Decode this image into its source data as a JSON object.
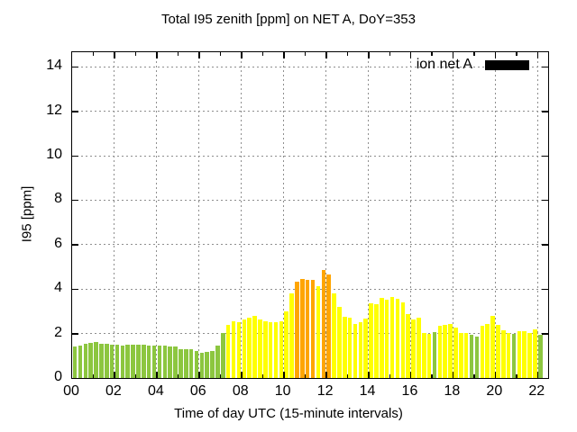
{
  "chart_data": {
    "type": "bar",
    "title": "Total I95 zenith [ppm] on NET A, DoY=353",
    "xlabel": "Time of day UTC (15-minute intervals)",
    "ylabel": "I95 [ppm]",
    "legend": {
      "label": "ion net A",
      "swatch_color": "#000000",
      "position": "top-right-inside"
    },
    "grid": "dashed",
    "background": "#ffffff",
    "interval_minutes": 15,
    "start_time": "00:00",
    "end_time": "22:00",
    "xlim_hours": [
      0,
      22.5
    ],
    "ylim": [
      0,
      14.66
    ],
    "yticks": [
      0,
      2,
      4,
      6,
      8,
      10,
      12,
      14
    ],
    "ytick_labels": [
      "0",
      "2",
      "4",
      "6",
      "8",
      "10",
      "12",
      "14"
    ],
    "xtick_hours": [
      0,
      2,
      4,
      6,
      8,
      10,
      12,
      14,
      16,
      18,
      20,
      22
    ],
    "xtick_labels": [
      "00",
      "02",
      "04",
      "06",
      "08",
      "10",
      "12",
      "14",
      "16",
      "18",
      "20",
      "22"
    ],
    "minor_xtick_every_hours": 1,
    "colors": {
      "G": "#8cc63f",
      "Y": "#ffff00",
      "O": "#ffa500"
    },
    "bar_colors": "GGGGGGGGGGGGGGGGGGGGGGGGGGGGGYYYYYYYYYYYYYOOOOYOOYYYYYYYYYYYYYYYYYYYGYYYYYYGGYYYYYYGYYYYG",
    "values": [
      1.41,
      1.44,
      1.54,
      1.59,
      1.63,
      1.54,
      1.52,
      1.51,
      1.51,
      1.46,
      1.51,
      1.5,
      1.5,
      1.48,
      1.47,
      1.47,
      1.46,
      1.44,
      1.41,
      1.43,
      1.31,
      1.28,
      1.28,
      1.21,
      1.13,
      1.17,
      1.22,
      1.45,
      2.04,
      2.38,
      2.57,
      2.51,
      2.65,
      2.73,
      2.78,
      2.65,
      2.57,
      2.51,
      2.53,
      2.57,
      3.01,
      3.8,
      4.35,
      4.45,
      4.4,
      4.4,
      4.15,
      4.85,
      4.65,
      3.82,
      3.19,
      2.74,
      2.7,
      2.45,
      2.5,
      2.68,
      3.38,
      3.31,
      3.62,
      3.51,
      3.66,
      3.58,
      3.42,
      2.88,
      2.64,
      2.72,
      2.03,
      2.0,
      2.07,
      2.34,
      2.38,
      2.45,
      2.27,
      2.03,
      2.03,
      1.93,
      1.86,
      2.34,
      2.45,
      2.78,
      2.38,
      2.16,
      2.03,
      2.0,
      2.11,
      2.11,
      2.03,
      2.2,
      1.93
    ]
  }
}
